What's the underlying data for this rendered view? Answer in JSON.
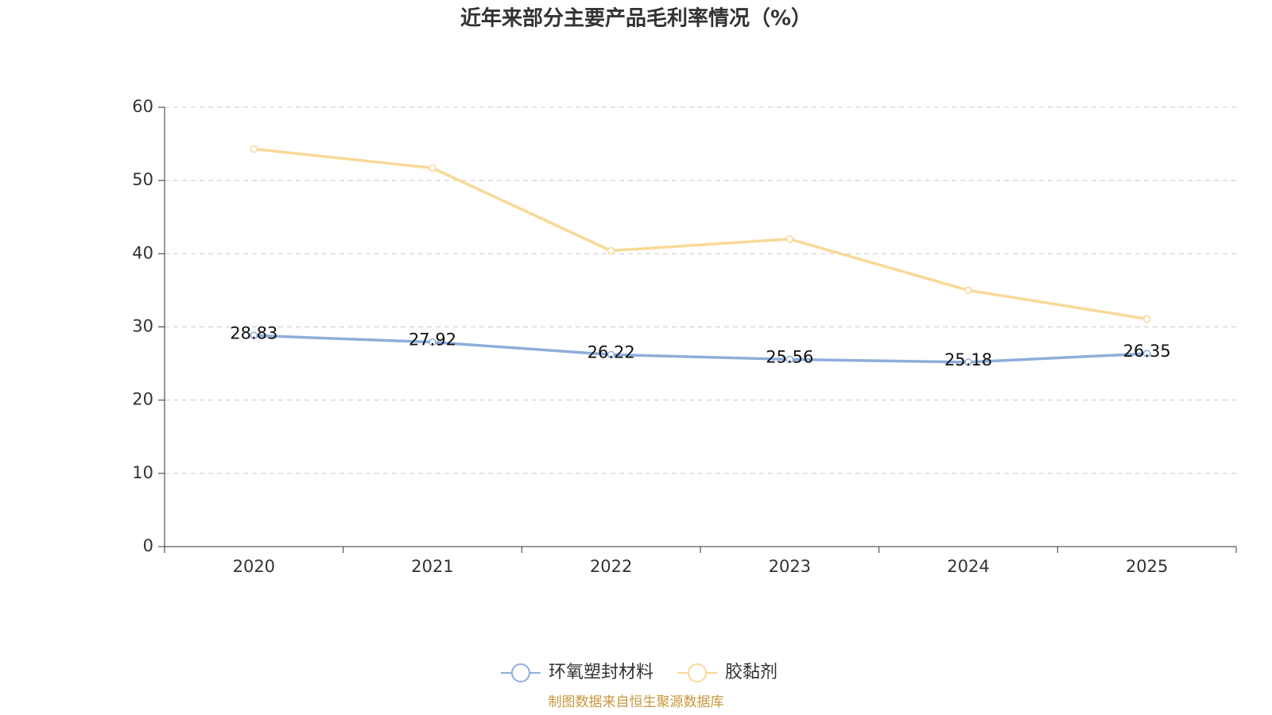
{
  "chart_data": {
    "type": "line",
    "title": "近年来部分主要产品毛利率情况（%）",
    "categories": [
      "2020",
      "2021",
      "2022",
      "2023",
      "2024",
      "2025"
    ],
    "series": [
      {
        "name": "环氧塑封材料",
        "color": "#8eaedb",
        "values": [
          28.83,
          27.92,
          26.22,
          25.56,
          25.18,
          26.35
        ],
        "show_labels": true
      },
      {
        "name": "胶黏剂",
        "color": "#fad896",
        "values": [
          54.3,
          51.7,
          40.4,
          42.0,
          35.0,
          31.1
        ],
        "show_labels": false
      }
    ],
    "ylim": [
      0,
      60
    ],
    "yticks": [
      0,
      10,
      20,
      30,
      40,
      50,
      60
    ],
    "grid": true,
    "legend": "bottom",
    "source": "制图数据来自恒生聚源数据库"
  }
}
